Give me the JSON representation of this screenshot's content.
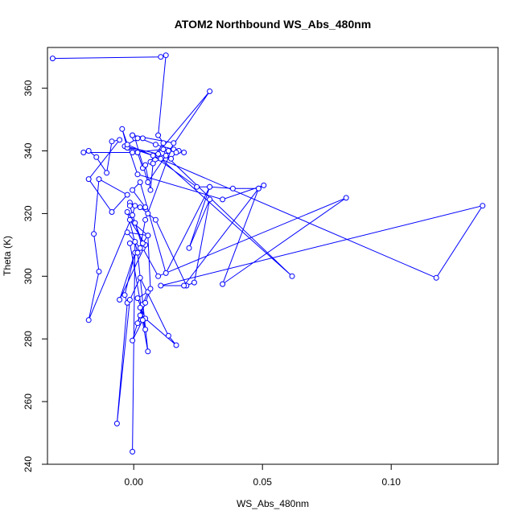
{
  "chart_data": {
    "type": "line",
    "title": "ATOM2 Northbound WS_Abs_480nm",
    "xlabel": "WS_Abs_480nm",
    "ylabel": "Theta (K)",
    "xlim": [
      -0.0335,
      0.1415
    ],
    "ylim": [
      240,
      373
    ],
    "xticks": [
      0.0,
      0.05,
      0.1
    ],
    "xtick_labels": [
      "0.00",
      "0.05",
      "0.10"
    ],
    "yticks": [
      240,
      260,
      280,
      300,
      320,
      340,
      360
    ],
    "ytick_labels": [
      "240",
      "260",
      "280",
      "300",
      "320",
      "340",
      "360"
    ],
    "grid": false,
    "legend": "none",
    "color": "#0000ff",
    "marker": "open-circle",
    "series": [
      {
        "x": [
          -0.0315,
          0.0105,
          0.0125,
          0.0095,
          0.0115,
          0.0065,
          0.0295,
          0.0055,
          0.0005,
          -0.0005,
          0.0085,
          0.0155,
          0.0135,
          0.0195,
          0.0175,
          0.0165,
          0.0145,
          0.0095,
          -0.0035,
          0.0075,
          0.0245,
          0.0295,
          0.0385,
          0.0485,
          0.0505,
          0.0345,
          0.0015,
          -0.0045,
          -0.0025,
          0.0015,
          0.0035,
          0.0045,
          0.0065,
          0.0075,
          0.0105,
          0.0615,
          0.0125,
          0.0115,
          -0.0005,
          -0.0195,
          -0.0175,
          -0.0145,
          -0.0105,
          -0.0085,
          -0.0055,
          -0.0175,
          -0.0085,
          -0.0025,
          -0.0135,
          -0.0155,
          -0.0135,
          -0.0175,
          -0.0005,
          0.0005,
          -0.0015,
          0.0025,
          0.0055,
          0.0085,
          0.0205,
          0.0235,
          0.0295,
          0.0215,
          0.0295,
          0.0125,
          0.0025,
          -0.0005,
          0.0045,
          -0.0015,
          0.0035,
          0.0095,
          0.0825,
          0.0345,
          0.0485,
          0.0195,
          0.0105,
          0.1355,
          0.1175,
          -0.0025,
          0.0015,
          0.0035,
          -0.0005,
          0.0155,
          0.0045,
          0.0025,
          -0.0025,
          0.0055,
          -0.0015,
          0.0045,
          -0.0055,
          0.0005,
          -0.0035,
          -0.0025,
          -0.0065,
          -0.0015,
          0.0025,
          0.0135,
          0.0165,
          0.0045,
          0.0015,
          0.0055,
          0.0035,
          -0.0005,
          0.0035,
          0.0015,
          0.0025,
          0.0045,
          0.0065,
          0.0055,
          0.0035,
          0.0005,
          -0.0025,
          0.0015,
          0.0055,
          0.0025,
          0.0045,
          -0.0015,
          0.0005,
          -0.0005
        ],
        "y": [
          369.5,
          370,
          370.5,
          345,
          342.5,
          336.5,
          359,
          330,
          344,
          345,
          342,
          340.5,
          340,
          339.5,
          340,
          339.5,
          337.5,
          339,
          341.5,
          338.5,
          328.5,
          328.5,
          328,
          328,
          329,
          324.5,
          332.5,
          347,
          341,
          339.5,
          334.5,
          335.5,
          327.5,
          336,
          337.5,
          300,
          338.5,
          340.5,
          339.5,
          339.5,
          340,
          338,
          333,
          343,
          343.5,
          331,
          320.5,
          326,
          331,
          313.5,
          301.5,
          286,
          319.5,
          322.5,
          323.5,
          322,
          320,
          318,
          297,
          298,
          324.5,
          309,
          328.5,
          301,
          330,
          327.5,
          322,
          322.5,
          309,
          300,
          325,
          297.5,
          328,
          297,
          297,
          322.5,
          299.5,
          342,
          344,
          344,
          345,
          342.5,
          318,
          309,
          314,
          313,
          318,
          310,
          292.5,
          307.5,
          294,
          291.5,
          253,
          292.5,
          299.5,
          281,
          278,
          286.5,
          293,
          295,
          291,
          279.5,
          286,
          285,
          287.5,
          291.5,
          296,
          313,
          310.5,
          317,
          320.5,
          307.5,
          276,
          290,
          283,
          310.5,
          311,
          244
        ]
      }
    ]
  }
}
